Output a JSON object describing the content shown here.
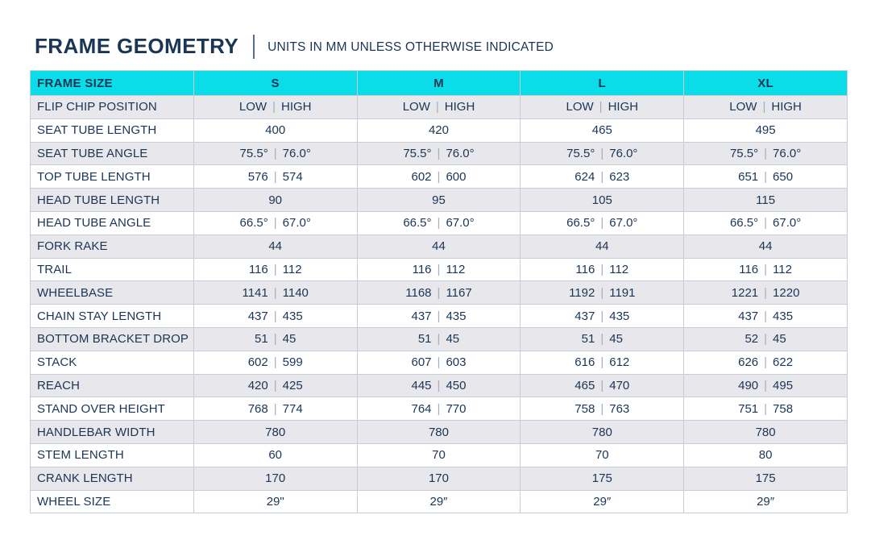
{
  "page": {
    "title": "FRAME GEOMETRY",
    "subtitle": "UNITS IN MM UNLESS OTHERWISE INDICATED"
  },
  "colors": {
    "header_bg": "#0ADDE8",
    "text_navy": "#1B3555",
    "row_alt_bg": "#E8E7EB",
    "row_bg": "#FFFFFF",
    "border": "#C7CCD6",
    "separator": "#A6AFBE"
  },
  "chart_data": {
    "type": "table",
    "title": "FRAME GEOMETRY",
    "subtitle": "UNITS IN MM UNLESS OTHERWISE INDICATED",
    "columns": [
      "FRAME SIZE",
      "S",
      "M",
      "L",
      "XL"
    ],
    "value_separator": "|",
    "rows": [
      {
        "label": "FLIP CHIP POSITION",
        "values": [
          [
            "LOW",
            "HIGH"
          ],
          [
            "LOW",
            "HIGH"
          ],
          [
            "LOW",
            "HIGH"
          ],
          [
            "LOW",
            "HIGH"
          ]
        ]
      },
      {
        "label": "SEAT TUBE LENGTH",
        "values": [
          "400",
          "420",
          "465",
          "495"
        ]
      },
      {
        "label": "SEAT TUBE ANGLE",
        "values": [
          [
            "75.5°",
            "76.0°"
          ],
          [
            "75.5°",
            "76.0°"
          ],
          [
            "75.5°",
            "76.0°"
          ],
          [
            "75.5°",
            "76.0°"
          ]
        ]
      },
      {
        "label": "TOP TUBE LENGTH",
        "values": [
          [
            "576",
            "574"
          ],
          [
            "602",
            "600"
          ],
          [
            "624",
            "623"
          ],
          [
            "651",
            "650"
          ]
        ]
      },
      {
        "label": "HEAD TUBE LENGTH",
        "values": [
          "90",
          "95",
          "105",
          "115"
        ]
      },
      {
        "label": "HEAD TUBE ANGLE",
        "values": [
          [
            "66.5°",
            "67.0°"
          ],
          [
            "66.5°",
            "67.0°"
          ],
          [
            "66.5°",
            "67.0°"
          ],
          [
            "66.5°",
            "67.0°"
          ]
        ]
      },
      {
        "label": "FORK RAKE",
        "values": [
          "44",
          "44",
          "44",
          "44"
        ]
      },
      {
        "label": "TRAIL",
        "values": [
          [
            "116",
            "112"
          ],
          [
            "116",
            "112"
          ],
          [
            "116",
            "112"
          ],
          [
            "116",
            "112"
          ]
        ]
      },
      {
        "label": "WHEELBASE",
        "values": [
          [
            "1141",
            "1140"
          ],
          [
            "1168",
            "1167"
          ],
          [
            "1192",
            "1191"
          ],
          [
            "1221",
            "1220"
          ]
        ]
      },
      {
        "label": "CHAIN STAY LENGTH",
        "values": [
          [
            "437",
            "435"
          ],
          [
            "437",
            "435"
          ],
          [
            "437",
            "435"
          ],
          [
            "437",
            "435"
          ]
        ]
      },
      {
        "label": "BOTTOM BRACKET DROP",
        "values": [
          [
            "51",
            "45"
          ],
          [
            "51",
            "45"
          ],
          [
            "51",
            "45"
          ],
          [
            "52",
            "45"
          ]
        ]
      },
      {
        "label": "STACK",
        "values": [
          [
            "602",
            "599"
          ],
          [
            "607",
            "603"
          ],
          [
            "616",
            "612"
          ],
          [
            "626",
            "622"
          ]
        ]
      },
      {
        "label": "REACH",
        "values": [
          [
            "420",
            "425"
          ],
          [
            "445",
            "450"
          ],
          [
            "465",
            "470"
          ],
          [
            "490",
            "495"
          ]
        ]
      },
      {
        "label": "STAND OVER HEIGHT",
        "values": [
          [
            "768",
            "774"
          ],
          [
            "764",
            "770"
          ],
          [
            "758",
            "763"
          ],
          [
            "751",
            "758"
          ]
        ]
      },
      {
        "label": "HANDLEBAR WIDTH",
        "values": [
          "780",
          "780",
          "780",
          "780"
        ]
      },
      {
        "label": "STEM LENGTH",
        "values": [
          "60",
          "70",
          "70",
          "80"
        ]
      },
      {
        "label": "CRANK LENGTH",
        "values": [
          "170",
          "170",
          "175",
          "175"
        ]
      },
      {
        "label": "WHEEL SIZE",
        "values": [
          "29\"",
          "29″",
          "29″",
          "29″"
        ]
      }
    ]
  }
}
